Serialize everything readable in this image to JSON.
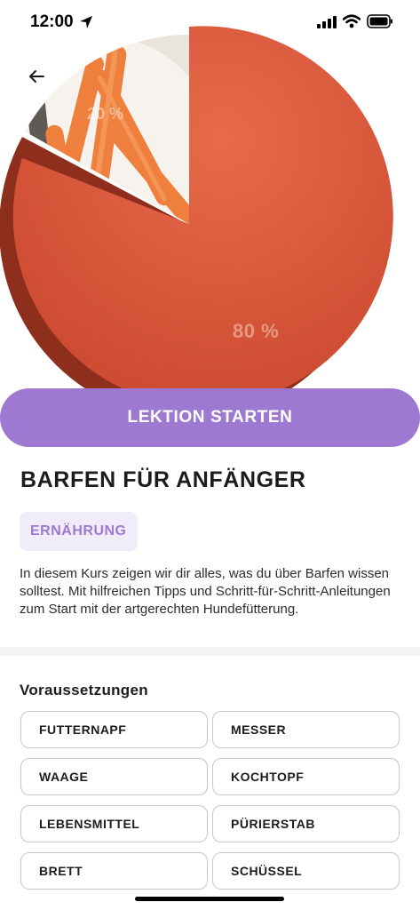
{
  "status_bar": {
    "time": "12:00"
  },
  "hero": {
    "pie_label": "80 %",
    "pie_label_small": "20 %",
    "colors": {
      "slice": "#d95a3c",
      "slice_edge": "#8e2e1c",
      "carrot": "#f08a46"
    }
  },
  "actions": {
    "start_label": "LEKTION STARTEN"
  },
  "course": {
    "title": "BARFEN FÜR ANFÄNGER",
    "category": "ERNÄHRUNG",
    "description": "In diesem Kurs zeigen wir dir alles, was du über Barfen wissen solltest. Mit hilfreichen Tipps und Schritt-für-Schritt-Anleitungen zum Start mit der artgerechten Hundefütterung."
  },
  "requirements": {
    "heading": "Voraussetzungen",
    "items": [
      "FUTTERNAPF",
      "MESSER",
      "WAAGE",
      "KOCHTOPF",
      "LEBENSMITTEL",
      "PÜRIERSTAB",
      "BRETT",
      "SCHÜSSEL"
    ]
  },
  "theme": {
    "accent": "#9e79d1",
    "accent_light": "#f1ecf9"
  }
}
